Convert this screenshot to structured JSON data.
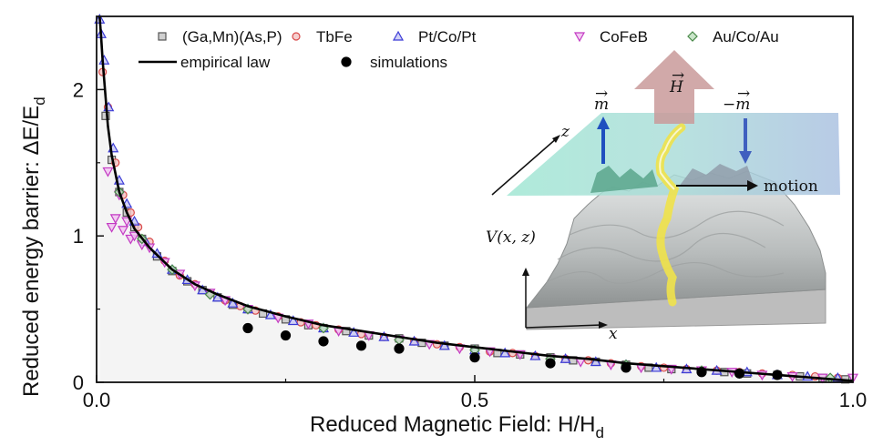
{
  "chart_data": {
    "type": "scatter",
    "xlabel": "Reduced Magnetic Field: H/H",
    "xlabel_sub": "d",
    "ylabel": "Reduced energy barrier: ΔE/E",
    "ylabel_sub": "d",
    "xlim": [
      0,
      1
    ],
    "ylim": [
      0,
      2.5
    ],
    "x_ticks": [
      {
        "value": 0,
        "label": "0.0"
      },
      {
        "value": 0.5,
        "label": "0.5"
      },
      {
        "value": 1,
        "label": "1.0"
      }
    ],
    "y_ticks": [
      {
        "value": 0,
        "label": "0"
      },
      {
        "value": 1,
        "label": "1"
      },
      {
        "value": 2,
        "label": "2"
      }
    ],
    "grid": false,
    "legend_position": "top",
    "series": [
      {
        "name": "(Ga,Mn)(As,P)",
        "marker": "square",
        "color": "#555555",
        "fill": "#c8c8c8",
        "x": [
          0.012,
          0.02,
          0.03,
          0.04,
          0.05,
          0.06,
          0.08,
          0.1,
          0.12,
          0.14,
          0.16,
          0.18,
          0.2,
          0.22,
          0.25,
          0.28,
          0.3,
          0.33,
          0.36,
          0.4,
          0.43,
          0.46,
          0.5,
          0.53,
          0.56,
          0.6,
          0.63,
          0.66,
          0.7,
          0.73,
          0.76,
          0.8,
          0.83,
          0.86,
          0.9,
          0.93,
          0.96,
          0.99
        ],
        "y": [
          1.82,
          1.52,
          1.3,
          1.16,
          1.06,
          0.98,
          0.86,
          0.76,
          0.69,
          0.63,
          0.58,
          0.53,
          0.5,
          0.47,
          0.43,
          0.39,
          0.37,
          0.35,
          0.32,
          0.3,
          0.27,
          0.25,
          0.23,
          0.2,
          0.19,
          0.17,
          0.15,
          0.14,
          0.12,
          0.1,
          0.09,
          0.08,
          0.07,
          0.06,
          0.05,
          0.04,
          0.03,
          0.02
        ]
      },
      {
        "name": "TbFe",
        "marker": "circle",
        "color": "#d94a4a",
        "fill": "#f3c6c6",
        "x": [
          0.008,
          0.015,
          0.025,
          0.035,
          0.045,
          0.055,
          0.07,
          0.09,
          0.11,
          0.13,
          0.15,
          0.17,
          0.19,
          0.21,
          0.24,
          0.27,
          0.29,
          0.32,
          0.35,
          0.38,
          0.42,
          0.45,
          0.48,
          0.52,
          0.55,
          0.58,
          0.62,
          0.65,
          0.68,
          0.72,
          0.75,
          0.78,
          0.82,
          0.85,
          0.88,
          0.92,
          0.95,
          0.98
        ],
        "y": [
          2.12,
          1.88,
          1.5,
          1.28,
          1.16,
          1.06,
          0.96,
          0.83,
          0.73,
          0.67,
          0.61,
          0.56,
          0.52,
          0.49,
          0.45,
          0.41,
          0.39,
          0.36,
          0.33,
          0.31,
          0.28,
          0.26,
          0.24,
          0.21,
          0.2,
          0.18,
          0.16,
          0.15,
          0.13,
          0.11,
          0.1,
          0.09,
          0.08,
          0.07,
          0.06,
          0.05,
          0.04,
          0.03
        ]
      },
      {
        "name": "Pt/Co/Pt",
        "marker": "triangle-up",
        "color": "#3b3bd6",
        "fill": "#c9c9f5",
        "x": [
          0.004,
          0.006,
          0.01,
          0.016,
          0.022,
          0.03,
          0.04,
          0.05,
          0.065,
          0.08,
          0.1,
          0.12,
          0.14,
          0.16,
          0.18,
          0.2,
          0.23,
          0.26,
          0.3,
          0.34,
          0.38,
          0.42,
          0.46,
          0.5,
          0.54,
          0.58,
          0.62,
          0.66,
          0.7,
          0.74,
          0.78,
          0.82,
          0.86,
          0.9,
          0.94,
          0.98
        ],
        "y": [
          2.48,
          2.38,
          2.2,
          1.88,
          1.6,
          1.38,
          1.22,
          1.1,
          0.96,
          0.88,
          0.77,
          0.7,
          0.63,
          0.58,
          0.54,
          0.5,
          0.46,
          0.42,
          0.37,
          0.34,
          0.31,
          0.28,
          0.25,
          0.22,
          0.2,
          0.18,
          0.16,
          0.14,
          0.12,
          0.1,
          0.09,
          0.08,
          0.07,
          0.05,
          0.04,
          0.03
        ]
      },
      {
        "name": "CoFeB",
        "marker": "triangle-down",
        "color": "#c33bc3",
        "fill": "#f1c3f1",
        "x": [
          0.015,
          0.02,
          0.025,
          0.03,
          0.035,
          0.04,
          0.045,
          0.05,
          0.06,
          0.07,
          0.09,
          0.11,
          0.13,
          0.15,
          0.17,
          0.2,
          0.24,
          0.28,
          0.32,
          0.36,
          0.4,
          0.44,
          0.48,
          0.52,
          0.56,
          0.6,
          0.64,
          0.68,
          0.72,
          0.76,
          0.8,
          0.84,
          0.88,
          0.92,
          0.96,
          1.0
        ],
        "y": [
          1.44,
          1.06,
          1.12,
          1.28,
          1.04,
          1.1,
          0.98,
          1.0,
          0.94,
          0.92,
          0.82,
          0.74,
          0.66,
          0.61,
          0.56,
          0.5,
          0.44,
          0.4,
          0.35,
          0.32,
          0.29,
          0.26,
          0.23,
          0.21,
          0.19,
          0.16,
          0.14,
          0.12,
          0.1,
          0.09,
          0.08,
          0.07,
          0.05,
          0.04,
          0.03,
          0.03
        ]
      },
      {
        "name": "Au/Co/Au",
        "marker": "diamond",
        "color": "#4a8a4a",
        "fill": "#bfe0bf",
        "x": [
          0.03,
          0.06,
          0.1,
          0.15,
          0.2,
          0.3,
          0.4,
          0.5,
          0.6,
          0.7,
          0.8,
          0.9,
          0.97
        ],
        "y": [
          1.3,
          0.98,
          0.77,
          0.6,
          0.5,
          0.37,
          0.29,
          0.22,
          0.16,
          0.12,
          0.08,
          0.05,
          0.03
        ]
      },
      {
        "name": "simulations",
        "marker": "filled-circle",
        "color": "#000000",
        "fill": "#000000",
        "x": [
          0.2,
          0.25,
          0.3,
          0.35,
          0.4,
          0.5,
          0.6,
          0.7,
          0.8,
          0.85,
          0.9
        ],
        "y": [
          0.37,
          0.32,
          0.28,
          0.25,
          0.23,
          0.17,
          0.13,
          0.1,
          0.07,
          0.06,
          0.05
        ]
      }
    ],
    "lines": [
      {
        "name": "empirical law",
        "color": "#000000",
        "x": [
          0.004,
          0.006,
          0.008,
          0.01,
          0.015,
          0.02,
          0.03,
          0.04,
          0.05,
          0.07,
          0.1,
          0.13,
          0.16,
          0.2,
          0.25,
          0.3,
          0.35,
          0.4,
          0.45,
          0.5,
          0.55,
          0.6,
          0.65,
          0.7,
          0.75,
          0.8,
          0.85,
          0.9,
          0.95,
          1.0
        ],
        "y": [
          2.5,
          2.36,
          2.2,
          2.07,
          1.75,
          1.55,
          1.3,
          1.16,
          1.05,
          0.92,
          0.77,
          0.67,
          0.6,
          0.52,
          0.45,
          0.39,
          0.35,
          0.31,
          0.27,
          0.24,
          0.21,
          0.18,
          0.16,
          0.13,
          0.11,
          0.09,
          0.07,
          0.05,
          0.03,
          0.01
        ]
      }
    ],
    "inset_labels": {
      "field": "H",
      "m_up": "m",
      "m_down": "−m",
      "z_axis": "z",
      "x_axis": "x",
      "potential": "V(x, z)",
      "motion": "motion"
    }
  }
}
